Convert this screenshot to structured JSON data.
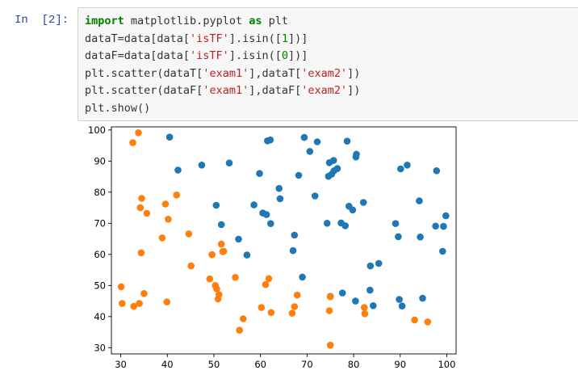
{
  "cell": {
    "prompt": "In  [2]:",
    "code_lines": [
      [
        {
          "t": "import",
          "c": "kw"
        },
        {
          "t": " matplotlib.pyplot ",
          "c": ""
        },
        {
          "t": "as",
          "c": "kw"
        },
        {
          "t": " plt",
          "c": ""
        }
      ],
      [
        {
          "t": "dataT=data[data[",
          "c": ""
        },
        {
          "t": "'isTF'",
          "c": "str"
        },
        {
          "t": "].isin([",
          "c": ""
        },
        {
          "t": "1",
          "c": "num"
        },
        {
          "t": "])]",
          "c": ""
        }
      ],
      [
        {
          "t": "dataF=data[data[",
          "c": ""
        },
        {
          "t": "'isTF'",
          "c": "str"
        },
        {
          "t": "].isin([",
          "c": ""
        },
        {
          "t": "0",
          "c": "num"
        },
        {
          "t": "])]",
          "c": ""
        }
      ],
      [
        {
          "t": "plt.scatter(dataT[",
          "c": ""
        },
        {
          "t": "'exam1'",
          "c": "str"
        },
        {
          "t": "],dataT[",
          "c": ""
        },
        {
          "t": "'exam2'",
          "c": "str"
        },
        {
          "t": "])",
          "c": ""
        }
      ],
      [
        {
          "t": "plt.scatter(dataF[",
          "c": ""
        },
        {
          "t": "'exam1'",
          "c": "str"
        },
        {
          "t": "],dataF[",
          "c": ""
        },
        {
          "t": "'exam2'",
          "c": "str"
        },
        {
          "t": "])",
          "c": ""
        }
      ],
      [
        {
          "t": "plt.show()",
          "c": ""
        }
      ]
    ]
  },
  "chart_data": {
    "type": "scatter",
    "xlim": [
      28,
      102
    ],
    "ylim": [
      28,
      101
    ],
    "xticks": [
      30,
      40,
      50,
      60,
      70,
      80,
      90,
      100
    ],
    "yticks": [
      30,
      40,
      50,
      60,
      70,
      80,
      90,
      100
    ],
    "grid": false,
    "series": [
      {
        "color": "#1f77b4",
        "x": [
          40.5,
          42.3,
          47.4,
          50.5,
          51.6,
          53.3,
          55.3,
          57.1,
          58.6,
          59.8,
          60.5,
          61.5,
          61.3,
          62.1,
          62.2,
          64.0,
          64.2,
          67.0,
          67.3,
          68.2,
          69.0,
          69.4,
          70.6,
          71.7,
          72.2,
          74.3,
          74.6,
          74.8,
          75.0,
          75.3,
          75.7,
          75.8,
          76.5,
          77.3,
          77.6,
          78.2,
          78.6,
          79.0,
          79.8,
          80.4,
          80.5,
          80.6,
          82.1,
          83.5,
          83.6,
          84.2,
          85.4,
          89.0,
          89.6,
          89.8,
          90.1,
          90.4,
          91.5,
          94.1,
          94.3,
          94.8,
          97.6,
          97.8,
          99.1,
          99.3,
          99.8
        ],
        "y": [
          97.7,
          87.1,
          88.7,
          75.8,
          69.6,
          89.4,
          64.9,
          59.8,
          75.9,
          86.0,
          73.3,
          96.5,
          72.8,
          96.8,
          69.9,
          81.2,
          77.9,
          61.2,
          66.2,
          85.4,
          52.7,
          97.6,
          93.1,
          78.8,
          96.2,
          70.0,
          85.1,
          89.5,
          46.5,
          85.8,
          90.2,
          86.9,
          87.6,
          70.1,
          47.6,
          69.2,
          96.4,
          75.5,
          74.3,
          45.0,
          91.3,
          92.2,
          76.7,
          48.5,
          56.3,
          43.5,
          57.1,
          69.9,
          65.7,
          45.5,
          87.5,
          43.4,
          88.7,
          77.2,
          65.6,
          45.9,
          69.1,
          86.9,
          61.0,
          69.0,
          72.4
        ]
      },
      {
        "color": "#ff7f0e",
        "x": [
          30.1,
          30.3,
          32.6,
          32.8,
          33.8,
          34.0,
          34.2,
          34.4,
          34.5,
          35.0,
          35.6,
          38.9,
          39.6,
          39.9,
          40.2,
          42.0,
          44.6,
          45.1,
          49.1,
          49.6,
          50.3,
          50.6,
          50.9,
          51.1,
          51.6,
          51.9,
          52.1,
          54.6,
          55.5,
          56.3,
          60.2,
          61.1,
          61.8,
          62.3,
          66.8,
          67.3,
          67.9,
          74.8,
          75.0,
          75.0,
          82.3,
          82.4,
          93.1,
          95.9
        ],
        "y": [
          49.6,
          44.2,
          95.9,
          43.3,
          99.1,
          44.2,
          75.0,
          60.5,
          78.0,
          47.4,
          73.2,
          65.3,
          76.2,
          44.7,
          71.3,
          79.1,
          66.6,
          56.3,
          52.1,
          59.9,
          50.0,
          48.9,
          45.7,
          47.1,
          63.3,
          60.9,
          61.0,
          52.6,
          35.6,
          39.3,
          42.9,
          50.3,
          52.2,
          41.3,
          41.1,
          43.2,
          46.9,
          41.9,
          46.4,
          30.8,
          42.9,
          40.9,
          38.9,
          38.3
        ]
      }
    ]
  }
}
